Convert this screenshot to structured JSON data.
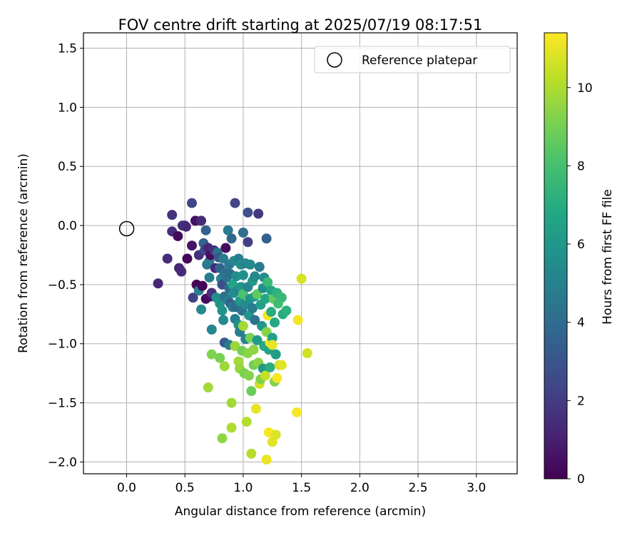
{
  "chart_data": {
    "type": "scatter",
    "title": "FOV centre drift starting at 2025/07/19 08:17:51",
    "xlabel": "Angular distance from reference (arcmin)",
    "ylabel": "Rotation from reference (arcmin)",
    "xlim": [
      -0.37,
      3.35
    ],
    "ylim": [
      -2.1,
      1.63
    ],
    "xticks": [
      "0.0",
      "0.5",
      "1.0",
      "1.5",
      "2.0",
      "2.5",
      "3.0"
    ],
    "yticks": [
      "1.5",
      "1.0",
      "0.5",
      "0.0",
      "−0.5",
      "−1.0",
      "−1.5",
      "−2.0"
    ],
    "grid": true,
    "legend": {
      "position": "top-right",
      "entries": [
        "Reference platepar"
      ]
    },
    "reference_point": {
      "x": 0.0,
      "y": 0.0
    },
    "colorbar": {
      "label": "Hours from first FF file",
      "colormap": "viridis",
      "range": [
        0,
        11.4
      ],
      "ticks": [
        "0",
        "2",
        "4",
        "6",
        "8",
        "10"
      ]
    },
    "points": [
      {
        "x": 0.27,
        "y": -0.49,
        "h": 1.2
      },
      {
        "x": 0.35,
        "y": -0.28,
        "h": 1.5
      },
      {
        "x": 0.39,
        "y": 0.09,
        "h": 1.6
      },
      {
        "x": 0.39,
        "y": -0.05,
        "h": 1.5
      },
      {
        "x": 0.44,
        "y": -0.09,
        "h": 0.3
      },
      {
        "x": 0.45,
        "y": -0.36,
        "h": 1.2
      },
      {
        "x": 0.47,
        "y": -0.39,
        "h": 1.4
      },
      {
        "x": 0.48,
        "y": 0.0,
        "h": 1.5
      },
      {
        "x": 0.5,
        "y": 0.0,
        "h": 1.6
      },
      {
        "x": 0.51,
        "y": -0.01,
        "h": 1.3
      },
      {
        "x": 0.52,
        "y": -0.28,
        "h": 0.2
      },
      {
        "x": 0.56,
        "y": 0.19,
        "h": 2.4
      },
      {
        "x": 0.56,
        "y": -0.17,
        "h": 0.6
      },
      {
        "x": 0.57,
        "y": -0.61,
        "h": 2.2
      },
      {
        "x": 0.59,
        "y": 0.04,
        "h": 0.5
      },
      {
        "x": 0.6,
        "y": -0.5,
        "h": 0.1
      },
      {
        "x": 0.62,
        "y": -0.25,
        "h": 1.6
      },
      {
        "x": 0.62,
        "y": -0.55,
        "h": 4.9
      },
      {
        "x": 0.64,
        "y": -0.71,
        "h": 5.3
      },
      {
        "x": 0.64,
        "y": 0.04,
        "h": 1.4
      },
      {
        "x": 0.65,
        "y": -0.51,
        "h": 0.1
      },
      {
        "x": 0.66,
        "y": -0.15,
        "h": 3.5
      },
      {
        "x": 0.67,
        "y": -0.21,
        "h": 2.5
      },
      {
        "x": 0.68,
        "y": -0.04,
        "h": 3.6
      },
      {
        "x": 0.68,
        "y": -0.62,
        "h": 0.3
      },
      {
        "x": 0.69,
        "y": -0.33,
        "h": 4.6
      },
      {
        "x": 0.7,
        "y": -0.19,
        "h": 1.2
      },
      {
        "x": 0.7,
        "y": -1.37,
        "h": 9.8
      },
      {
        "x": 0.71,
        "y": -0.3,
        "h": 4.8
      },
      {
        "x": 0.71,
        "y": -0.44,
        "h": 4.9
      },
      {
        "x": 0.72,
        "y": -0.25,
        "h": 0.4
      },
      {
        "x": 0.72,
        "y": -0.6,
        "h": 0.5
      },
      {
        "x": 0.73,
        "y": -0.57,
        "h": 1.6
      },
      {
        "x": 0.73,
        "y": -0.88,
        "h": 5.2
      },
      {
        "x": 0.73,
        "y": -1.09,
        "h": 9.2
      },
      {
        "x": 0.75,
        "y": -0.21,
        "h": 1.6
      },
      {
        "x": 0.76,
        "y": -0.36,
        "h": 1.4
      },
      {
        "x": 0.77,
        "y": -0.61,
        "h": 5.5
      },
      {
        "x": 0.78,
        "y": -0.23,
        "h": 4.4
      },
      {
        "x": 0.79,
        "y": -0.27,
        "h": 3.1
      },
      {
        "x": 0.8,
        "y": -0.36,
        "h": 3.7
      },
      {
        "x": 0.8,
        "y": -0.66,
        "h": 5.8
      },
      {
        "x": 0.8,
        "y": -1.12,
        "h": 9.1
      },
      {
        "x": 0.81,
        "y": -0.45,
        "h": 5.1
      },
      {
        "x": 0.82,
        "y": -0.5,
        "h": 2.7
      },
      {
        "x": 0.82,
        "y": -0.72,
        "h": 5.9
      },
      {
        "x": 0.82,
        "y": -1.8,
        "h": 9.5
      },
      {
        "x": 0.83,
        "y": -0.28,
        "h": 4.7
      },
      {
        "x": 0.83,
        "y": -0.8,
        "h": 5.4
      },
      {
        "x": 0.84,
        "y": -0.4,
        "h": 4.2
      },
      {
        "x": 0.84,
        "y": -0.6,
        "h": 4.4
      },
      {
        "x": 0.84,
        "y": -0.99,
        "h": 3.2
      },
      {
        "x": 0.84,
        "y": -1.19,
        "h": 9.7
      },
      {
        "x": 0.85,
        "y": -0.19,
        "h": 0.4
      },
      {
        "x": 0.86,
        "y": -0.44,
        "h": 4.4
      },
      {
        "x": 0.87,
        "y": -0.04,
        "h": 4.7
      },
      {
        "x": 0.87,
        "y": -0.63,
        "h": 4.8
      },
      {
        "x": 0.88,
        "y": -0.33,
        "h": 4.6
      },
      {
        "x": 0.88,
        "y": -0.53,
        "h": 4.0
      },
      {
        "x": 0.88,
        "y": -1.01,
        "h": 4.6
      },
      {
        "x": 0.89,
        "y": -0.41,
        "h": 4.2
      },
      {
        "x": 0.89,
        "y": -0.66,
        "h": 3.6
      },
      {
        "x": 0.9,
        "y": -0.11,
        "h": 3.8
      },
      {
        "x": 0.9,
        "y": -1.5,
        "h": 9.8
      },
      {
        "x": 0.9,
        "y": -1.71,
        "h": 10.0
      },
      {
        "x": 0.91,
        "y": -0.5,
        "h": 6.7
      },
      {
        "x": 0.91,
        "y": -0.69,
        "h": 4.7
      },
      {
        "x": 0.92,
        "y": -0.3,
        "h": 5.2
      },
      {
        "x": 0.92,
        "y": -0.57,
        "h": 5.6
      },
      {
        "x": 0.93,
        "y": 0.19,
        "h": 2.3
      },
      {
        "x": 0.93,
        "y": -0.79,
        "h": 4.9
      },
      {
        "x": 0.93,
        "y": -1.02,
        "h": 9.7
      },
      {
        "x": 0.94,
        "y": -0.43,
        "h": 5.5
      },
      {
        "x": 0.94,
        "y": -0.69,
        "h": 4.0
      },
      {
        "x": 0.95,
        "y": -0.55,
        "h": 5.1
      },
      {
        "x": 0.96,
        "y": -0.28,
        "h": 4.8
      },
      {
        "x": 0.96,
        "y": -0.84,
        "h": 5.6
      },
      {
        "x": 0.96,
        "y": -1.15,
        "h": 9.8
      },
      {
        "x": 0.97,
        "y": -0.64,
        "h": 6.1
      },
      {
        "x": 0.97,
        "y": -0.9,
        "h": 4.8
      },
      {
        "x": 0.97,
        "y": -1.21,
        "h": 9.6
      },
      {
        "x": 0.98,
        "y": -0.33,
        "h": 5.5
      },
      {
        "x": 0.98,
        "y": -0.52,
        "h": 5.9
      },
      {
        "x": 0.99,
        "y": -0.72,
        "h": 4.4
      },
      {
        "x": 0.99,
        "y": -1.06,
        "h": 9.0
      },
      {
        "x": 1.0,
        "y": -0.06,
        "h": 4.0
      },
      {
        "x": 1.0,
        "y": -0.42,
        "h": 5.7
      },
      {
        "x": 1.0,
        "y": -0.58,
        "h": 8.1
      },
      {
        "x": 1.0,
        "y": -0.85,
        "h": 9.8
      },
      {
        "x": 1.01,
        "y": -1.25,
        "h": 9.1
      },
      {
        "x": 1.02,
        "y": -0.32,
        "h": 5.2
      },
      {
        "x": 1.02,
        "y": -0.67,
        "h": 5.4
      },
      {
        "x": 1.02,
        "y": -0.96,
        "h": 5.0
      },
      {
        "x": 1.03,
        "y": -1.66,
        "h": 10.1
      },
      {
        "x": 1.04,
        "y": 0.11,
        "h": 2.8
      },
      {
        "x": 1.04,
        "y": -0.14,
        "h": 2.1
      },
      {
        "x": 1.04,
        "y": -0.52,
        "h": 5.1
      },
      {
        "x": 1.04,
        "y": -1.08,
        "h": 9.4
      },
      {
        "x": 1.05,
        "y": -0.76,
        "h": 6.0
      },
      {
        "x": 1.05,
        "y": -1.27,
        "h": 9.3
      },
      {
        "x": 1.06,
        "y": -0.33,
        "h": 5.4
      },
      {
        "x": 1.06,
        "y": -0.62,
        "h": 5.8
      },
      {
        "x": 1.06,
        "y": -0.95,
        "h": 9.1
      },
      {
        "x": 1.07,
        "y": -1.4,
        "h": 8.8
      },
      {
        "x": 1.07,
        "y": -1.93,
        "h": 10.1
      },
      {
        "x": 1.08,
        "y": -0.47,
        "h": 6.0
      },
      {
        "x": 1.08,
        "y": -0.7,
        "h": 4.8
      },
      {
        "x": 1.09,
        "y": -1.05,
        "h": 9.5
      },
      {
        "x": 1.09,
        "y": -1.18,
        "h": 9.0
      },
      {
        "x": 1.1,
        "y": -0.43,
        "h": 5.3
      },
      {
        "x": 1.1,
        "y": -0.6,
        "h": 6.3
      },
      {
        "x": 1.1,
        "y": -0.8,
        "h": 4.3
      },
      {
        "x": 1.11,
        "y": -1.55,
        "h": 11.0
      },
      {
        "x": 1.12,
        "y": -0.58,
        "h": 8.6
      },
      {
        "x": 1.12,
        "y": -0.97,
        "h": 6.2
      },
      {
        "x": 1.13,
        "y": 0.1,
        "h": 1.9
      },
      {
        "x": 1.13,
        "y": -1.16,
        "h": 9.4
      },
      {
        "x": 1.14,
        "y": -0.35,
        "h": 4.8
      },
      {
        "x": 1.14,
        "y": -1.34,
        "h": 10.6
      },
      {
        "x": 1.15,
        "y": -0.67,
        "h": 6.4
      },
      {
        "x": 1.15,
        "y": -1.3,
        "h": 9.2
      },
      {
        "x": 1.16,
        "y": -0.85,
        "h": 6.0
      },
      {
        "x": 1.17,
        "y": -0.53,
        "h": 5.6
      },
      {
        "x": 1.17,
        "y": -1.21,
        "h": 6.1
      },
      {
        "x": 1.18,
        "y": -0.44,
        "h": 5.5
      },
      {
        "x": 1.18,
        "y": -1.02,
        "h": 6.9
      },
      {
        "x": 1.19,
        "y": -0.62,
        "h": 6.8
      },
      {
        "x": 1.19,
        "y": -1.27,
        "h": 10.4
      },
      {
        "x": 1.2,
        "y": -0.11,
        "h": 3.4
      },
      {
        "x": 1.2,
        "y": -0.9,
        "h": 9.3
      },
      {
        "x": 1.2,
        "y": -1.98,
        "h": 11.1
      },
      {
        "x": 1.21,
        "y": -0.48,
        "h": 7.7
      },
      {
        "x": 1.21,
        "y": -0.76,
        "h": 11.2
      },
      {
        "x": 1.22,
        "y": -1.05,
        "h": 6.7
      },
      {
        "x": 1.22,
        "y": -1.75,
        "h": 11.3
      },
      {
        "x": 1.23,
        "y": -0.99,
        "h": 11.2
      },
      {
        "x": 1.23,
        "y": -1.2,
        "h": 7.1
      },
      {
        "x": 1.24,
        "y": -0.55,
        "h": 6.7
      },
      {
        "x": 1.24,
        "y": -0.73,
        "h": 7.1
      },
      {
        "x": 1.25,
        "y": -0.95,
        "h": 6.4
      },
      {
        "x": 1.25,
        "y": -1.01,
        "h": 11.0
      },
      {
        "x": 1.25,
        "y": -1.83,
        "h": 10.9
      },
      {
        "x": 1.26,
        "y": -0.62,
        "h": 8.6
      },
      {
        "x": 1.27,
        "y": -0.82,
        "h": 6.9
      },
      {
        "x": 1.27,
        "y": -1.32,
        "h": 9.2
      },
      {
        "x": 1.28,
        "y": -1.09,
        "h": 6.3
      },
      {
        "x": 1.28,
        "y": -1.77,
        "h": 10.8
      },
      {
        "x": 1.29,
        "y": -0.57,
        "h": 7.3
      },
      {
        "x": 1.29,
        "y": -1.29,
        "h": 11.3
      },
      {
        "x": 1.3,
        "y": -0.66,
        "h": 7.8
      },
      {
        "x": 1.31,
        "y": -1.18,
        "h": 10.6
      },
      {
        "x": 1.33,
        "y": -0.61,
        "h": 7.6
      },
      {
        "x": 1.33,
        "y": -1.18,
        "h": 10.9
      },
      {
        "x": 1.34,
        "y": -0.75,
        "h": 7.0
      },
      {
        "x": 1.37,
        "y": -0.72,
        "h": 7.2
      },
      {
        "x": 1.46,
        "y": -1.58,
        "h": 11.3
      },
      {
        "x": 1.47,
        "y": -0.8,
        "h": 11.2
      },
      {
        "x": 1.5,
        "y": -0.45,
        "h": 10.7
      },
      {
        "x": 1.55,
        "y": -1.08,
        "h": 10.6
      }
    ]
  }
}
